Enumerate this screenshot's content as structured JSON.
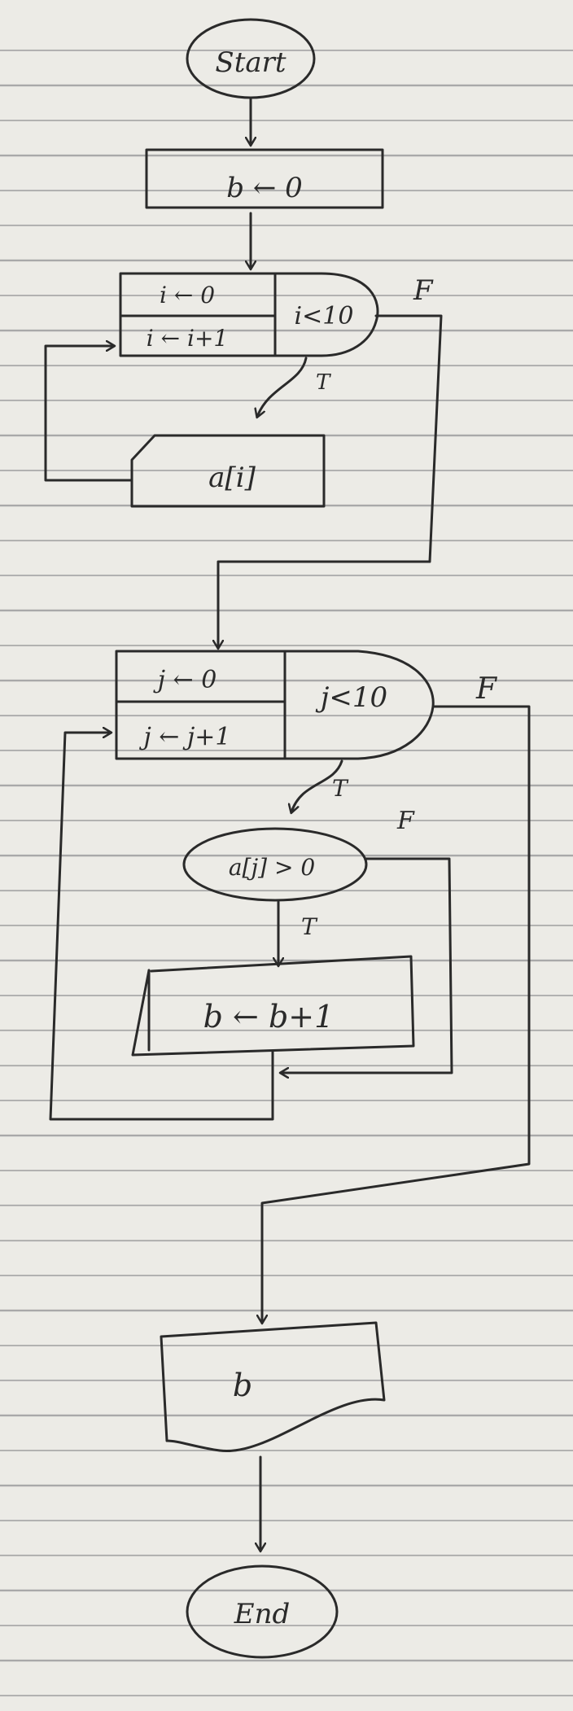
{
  "flowchart": {
    "start": "Start",
    "init_b": "b ← 0",
    "loop1": {
      "init": "i ← 0",
      "update": "i ← i+1",
      "cond": "i<10",
      "false_label": "F",
      "true_label": "T"
    },
    "input_a": "a[i]",
    "loop2": {
      "init": "j ← 0",
      "update": "j ← j+1",
      "cond": "j<10",
      "false_label": "F",
      "true_label": "T"
    },
    "decision": {
      "cond": "a[j] > 0",
      "false_label": "F",
      "true_label": "T"
    },
    "increment": "b ← b+1",
    "output": "b",
    "end": "End"
  }
}
